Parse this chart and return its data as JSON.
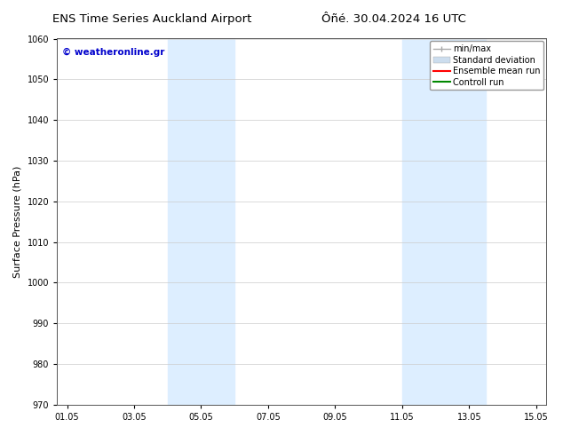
{
  "title_left": "ENS Time Series Auckland Airport",
  "title_right": "Ôñé. 30.04.2024 16 UTC",
  "ylabel": "Surface Pressure (hPa)",
  "ylim": [
    970,
    1060
  ],
  "yticks": [
    970,
    980,
    990,
    1000,
    1010,
    1020,
    1030,
    1040,
    1050,
    1060
  ],
  "xtick_labels": [
    "01.05",
    "03.05",
    "05.05",
    "07.05",
    "09.05",
    "11.05",
    "13.05",
    "15.05"
  ],
  "xtick_positions": [
    0,
    2,
    4,
    6,
    8,
    10,
    12,
    14
  ],
  "xlim": [
    -0.3,
    14.3
  ],
  "watermark": "© weatheronline.gr",
  "watermark_color": "#0000cc",
  "shaded_regions": [
    {
      "x_start": 3.0,
      "x_end": 5.0
    },
    {
      "x_start": 10.0,
      "x_end": 12.5
    }
  ],
  "shade_color": "#ddeeff",
  "background_color": "#ffffff",
  "legend_items": [
    {
      "label": "min/max",
      "color": "#aaaaaa",
      "lw": 1.0
    },
    {
      "label": "Standard deviation",
      "color": "#ccddee",
      "lw": 6
    },
    {
      "label": "Ensemble mean run",
      "color": "#ff0000",
      "lw": 1.5
    },
    {
      "label": "Controll run",
      "color": "#008800",
      "lw": 1.5
    }
  ],
  "grid_color": "#cccccc",
  "title_fontsize": 9.5,
  "tick_fontsize": 7,
  "ylabel_fontsize": 8,
  "watermark_fontsize": 7.5,
  "legend_fontsize": 7
}
